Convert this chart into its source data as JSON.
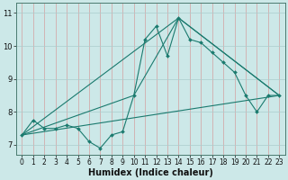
{
  "xlabel": "Humidex (Indice chaleur)",
  "bg_color": "#cce8e8",
  "line_color": "#1a7a6e",
  "xlim": [
    -0.5,
    23.5
  ],
  "ylim": [
    6.7,
    11.3
  ],
  "yticks": [
    7,
    8,
    9,
    10,
    11
  ],
  "xticks": [
    0,
    1,
    2,
    3,
    4,
    5,
    6,
    7,
    8,
    9,
    10,
    11,
    12,
    13,
    14,
    15,
    16,
    17,
    18,
    19,
    20,
    21,
    22,
    23
  ],
  "main_series": {
    "x": [
      0,
      1,
      2,
      3,
      4,
      5,
      6,
      7,
      8,
      9,
      10,
      11,
      12,
      13,
      14,
      15,
      16,
      17,
      18,
      19,
      20,
      21,
      22,
      23
    ],
    "y": [
      7.3,
      7.75,
      7.5,
      7.5,
      7.6,
      7.5,
      7.1,
      6.9,
      7.3,
      7.4,
      8.5,
      10.2,
      10.6,
      9.7,
      10.85,
      10.2,
      10.1,
      9.8,
      9.5,
      9.2,
      8.5,
      8.0,
      8.5,
      8.5
    ]
  },
  "straight_lines": [
    {
      "x": [
        0,
        23
      ],
      "y": [
        7.3,
        8.5
      ]
    },
    {
      "x": [
        0,
        14,
        23
      ],
      "y": [
        7.3,
        10.85,
        8.5
      ]
    },
    {
      "x": [
        0,
        10,
        14,
        23
      ],
      "y": [
        7.3,
        8.5,
        10.85,
        8.5
      ]
    }
  ],
  "vgrid_color": "#d4a0a0",
  "hgrid_color": "#aacccc",
  "spine_color": "#4a7a70",
  "tick_fontsize": 5.5,
  "xlabel_fontsize": 7
}
